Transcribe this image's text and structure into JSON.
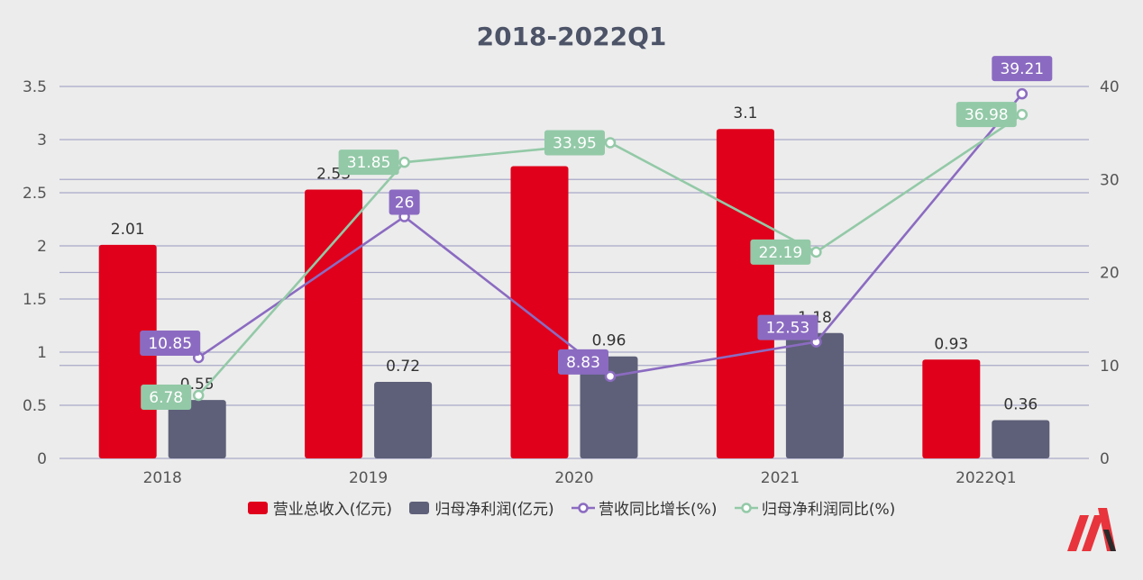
{
  "title": "2018-2022Q1",
  "chart_data": {
    "type": "bar",
    "categories": [
      "2018",
      "2019",
      "2020",
      "2021",
      "2022Q1"
    ],
    "left_axis": {
      "ylim": [
        0,
        3.5
      ],
      "ticks": [
        "0",
        "0.5",
        "1",
        "1.5",
        "2",
        "2.5",
        "3",
        "3.5"
      ]
    },
    "right_axis": {
      "ylim": [
        0,
        40
      ],
      "ticks": [
        "0",
        "10",
        "20",
        "30",
        "40"
      ]
    },
    "grid": true,
    "legend_position": "bottom",
    "series": [
      {
        "name": "营业总收入(亿元)",
        "kind": "bar",
        "axis": "left",
        "color": "#e0001b",
        "values": [
          2.01,
          2.53,
          2.75,
          3.1,
          0.93
        ],
        "labels": [
          "2.01",
          "2.53",
          "",
          "3.1",
          "0.93"
        ]
      },
      {
        "name": "归母净利润(亿元)",
        "kind": "bar",
        "axis": "left",
        "color": "#5e6079",
        "values": [
          0.55,
          0.72,
          0.96,
          1.18,
          0.36
        ],
        "labels": [
          "0.55",
          "0.72",
          "0.96",
          "1.18",
          "0.36"
        ]
      },
      {
        "name": "营收同比增长(%)",
        "kind": "line",
        "axis": "right",
        "color": "#8b6bc1",
        "values": [
          10.85,
          26,
          8.83,
          12.53,
          39.21
        ],
        "labels": [
          "10.85",
          "26",
          "8.83",
          "12.53",
          "39.21"
        ]
      },
      {
        "name": "归母净利润同比(%)",
        "kind": "line",
        "axis": "right",
        "color": "#93c9a7",
        "values": [
          6.78,
          31.85,
          33.95,
          22.19,
          36.98
        ],
        "labels": [
          "6.78",
          "31.85",
          "33.95",
          "22.19",
          "36.98"
        ]
      }
    ]
  },
  "logo": {
    "icon": "m-brand-logo-icon",
    "colors": [
      "#e8343c",
      "#2b2b2b"
    ]
  }
}
